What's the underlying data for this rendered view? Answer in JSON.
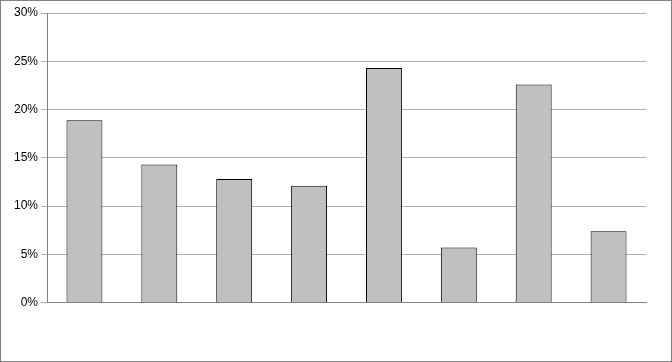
{
  "chart_data": {
    "type": "bar",
    "categories": [
      null,
      null,
      null,
      null,
      null,
      null,
      null,
      null
    ],
    "values": [
      18.9,
      14.3,
      12.8,
      12.1,
      24.3,
      5.7,
      22.6,
      7.4
    ],
    "color": "#c0c0c0",
    "ylim": [
      0,
      30
    ],
    "yticks": [
      {
        "value": 0,
        "label": "0%"
      },
      {
        "value": 5,
        "label": "5%"
      },
      {
        "value": 10,
        "label": "10%"
      },
      {
        "value": 15,
        "label": "15%"
      },
      {
        "value": 20,
        "label": "20%"
      },
      {
        "value": 25,
        "label": "25%"
      },
      {
        "value": 30,
        "label": "30%"
      }
    ],
    "grid": true
  }
}
